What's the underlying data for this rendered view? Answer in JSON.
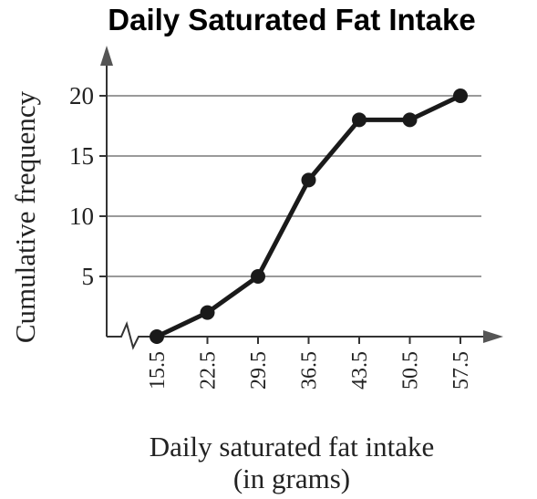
{
  "chart_data": {
    "type": "line",
    "title": "Daily Saturated Fat Intake",
    "xlabel_line1": "Daily saturated fat intake",
    "xlabel_line2": "(in grams)",
    "ylabel": "Cumulative frequency",
    "x": [
      15.5,
      22.5,
      29.5,
      36.5,
      43.5,
      50.5,
      57.5
    ],
    "x_tick_labels": [
      "15.5",
      "22.5",
      "29.5",
      "36.5",
      "43.5",
      "50.5",
      "57.5"
    ],
    "y": [
      0,
      2,
      5,
      13,
      18,
      18,
      20
    ],
    "y_ticks": [
      5,
      10,
      15,
      20
    ],
    "y_tick_labels": [
      "5",
      "10",
      "15",
      "20"
    ],
    "ylim": [
      0,
      20
    ],
    "grid": true,
    "axis_break": true,
    "line_color": "#1a1a1a",
    "grid_color": "#9a9a9a"
  }
}
